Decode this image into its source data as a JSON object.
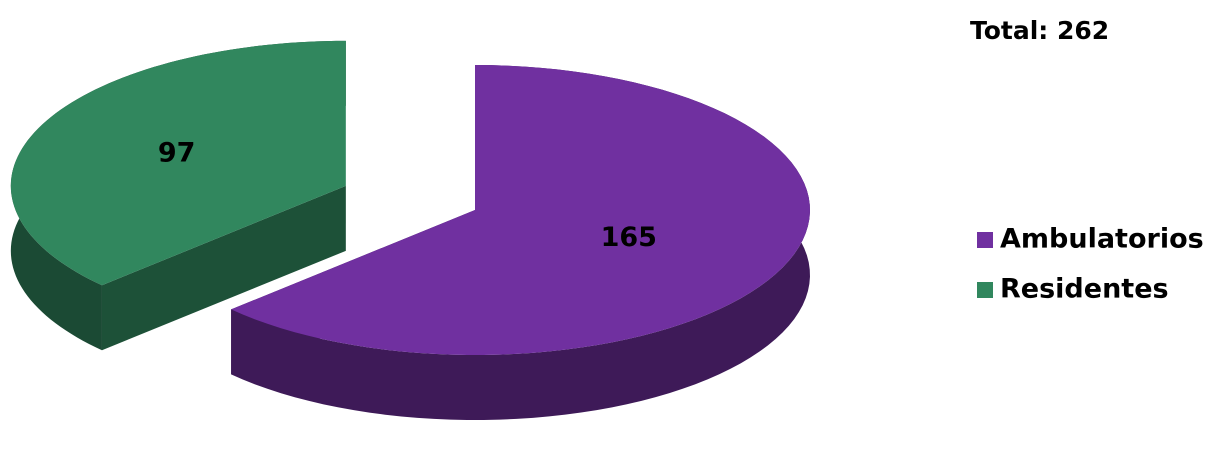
{
  "chart_data": {
    "type": "pie",
    "annotation": "Total: 262",
    "categories": [
      "Ambulatorios",
      "Residentes"
    ],
    "values": [
      165,
      97
    ],
    "colors": [
      "#7030a0",
      "#31875e"
    ],
    "legend": "right"
  }
}
